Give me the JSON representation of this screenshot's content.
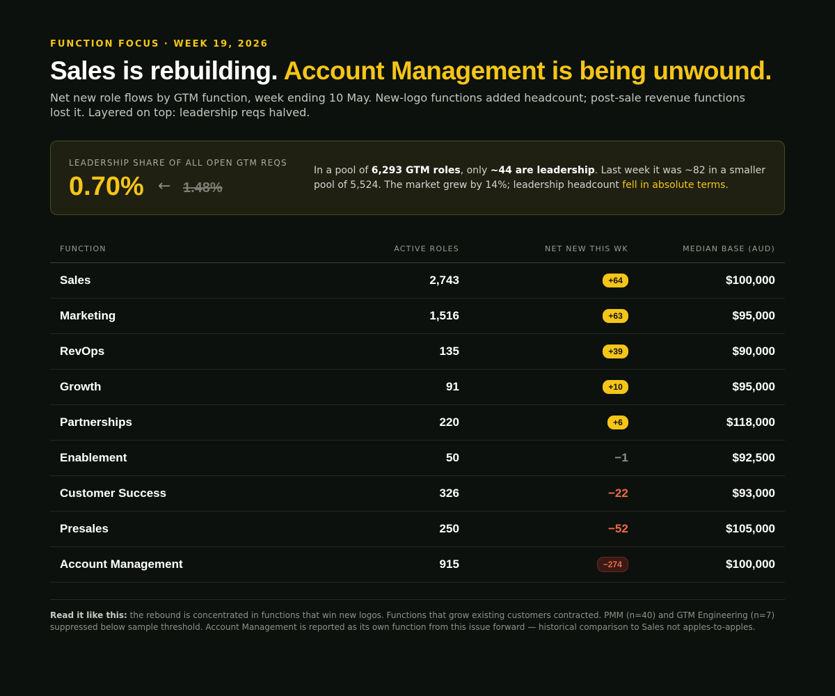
{
  "eyebrow": "FUNCTION FOCUS · WEEK 19, 2026",
  "headline": {
    "part1": "Sales is rebuilding. ",
    "part2": "Account Management is being unwound."
  },
  "lede": "Net new role flows by GTM function, week ending 10 May. New-logo functions added headcount; post-sale revenue functions lost it. Layered on top: leadership reqs halved.",
  "callout": {
    "label": "LEADERSHIP SHARE OF ALL OPEN GTM REQS",
    "value": "0.70%",
    "arrow": "←",
    "previous": "1.48%",
    "desc_1": "In a pool of ",
    "desc_b1": "6,293 GTM roles",
    "desc_2": ", only ",
    "desc_b2": "~44 are leadership",
    "desc_3": ". Last week it was ~82 in a smaller pool of 5,524. The market grew by 14%; leadership headcount ",
    "desc_hl": "fell in absolute terms."
  },
  "table": {
    "headers": {
      "function": "FUNCTION",
      "active": "ACTIVE ROLES",
      "net": "NET NEW THIS WK",
      "median": "MEDIAN BASE (AUD)"
    },
    "rows": [
      {
        "function": "Sales",
        "active": "2,743",
        "net": "+64",
        "net_style": "pos",
        "median": "$100,000"
      },
      {
        "function": "Marketing",
        "active": "1,516",
        "net": "+63",
        "net_style": "pos",
        "median": "$95,000"
      },
      {
        "function": "RevOps",
        "active": "135",
        "net": "+39",
        "net_style": "pos",
        "median": "$90,000"
      },
      {
        "function": "Growth",
        "active": "91",
        "net": "+10",
        "net_style": "pos",
        "median": "$95,000"
      },
      {
        "function": "Partnerships",
        "active": "220",
        "net": "+6",
        "net_style": "pos",
        "median": "$118,000"
      },
      {
        "function": "Enablement",
        "active": "50",
        "net": "−1",
        "net_style": "flat",
        "median": "$92,500"
      },
      {
        "function": "Customer Success",
        "active": "326",
        "net": "−22",
        "net_style": "neg",
        "median": "$93,000"
      },
      {
        "function": "Presales",
        "active": "250",
        "net": "−52",
        "net_style": "neg",
        "median": "$105,000"
      },
      {
        "function": "Account Management",
        "active": "915",
        "net": "−274",
        "net_style": "negpill",
        "median": "$100,000"
      }
    ]
  },
  "footnote": {
    "lead": "Read it like this:",
    "text": " the rebound is concentrated in functions that win new logos. Functions that grow existing customers contracted. PMM (n=40) and GTM Engineering (n=7) suppressed below sample threshold. Account Management is reported as its own function from this issue forward — historical comparison to Sales not apples-to-apples."
  },
  "colors": {
    "background": "#0c110d",
    "accent": "#f5c518",
    "negative": "#f06a4a"
  }
}
